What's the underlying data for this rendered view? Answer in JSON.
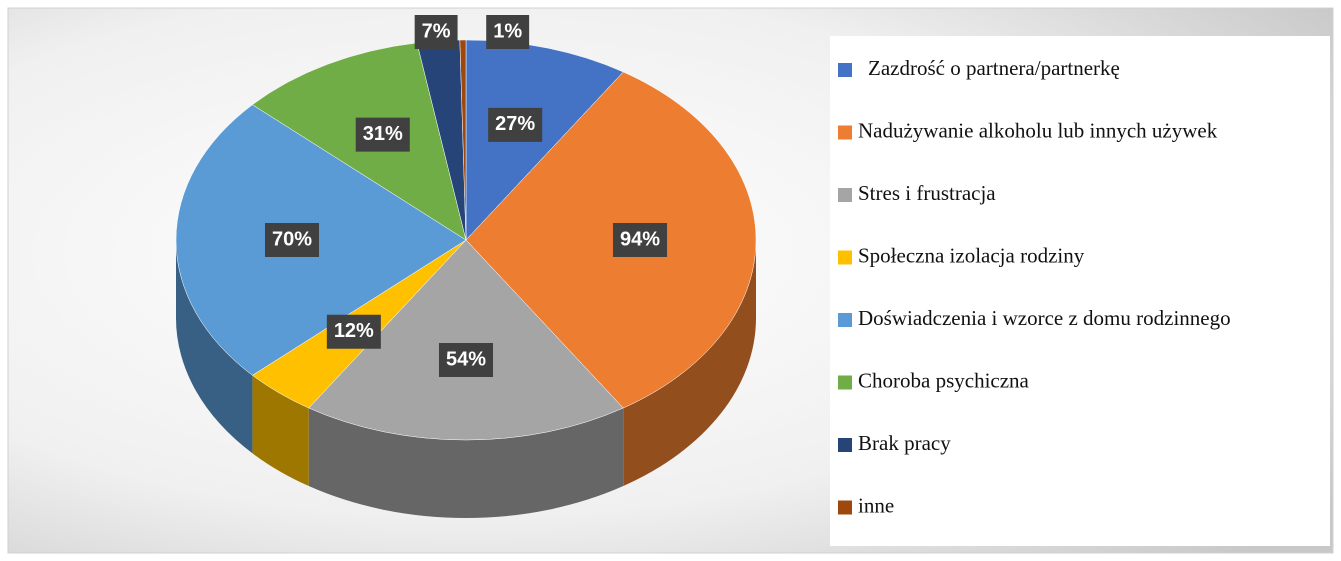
{
  "chart_data": {
    "type": "pie",
    "categories": [
      "Zazdrość o partnera/partnerkę",
      "Nadużywanie alkoholu lub innych używek",
      "Stres i frustracja",
      "Społeczna izolacja rodziny",
      "Doświadczenia i wzorce z domu rodzinnego",
      "Choroba psychiczna",
      "Brak pracy",
      "inne"
    ],
    "values": [
      27,
      94,
      54,
      12,
      70,
      31,
      7,
      1
    ],
    "value_labels": [
      "27%",
      "94%",
      "54%",
      "12%",
      "70%",
      "31%",
      "7%",
      "1%"
    ],
    "colors": [
      "#4472c4",
      "#ed7d31",
      "#a5a5a5",
      "#ffc000",
      "#5b9bd5",
      "#70ad47",
      "#264478",
      "#9e480e"
    ],
    "legend": "right"
  }
}
